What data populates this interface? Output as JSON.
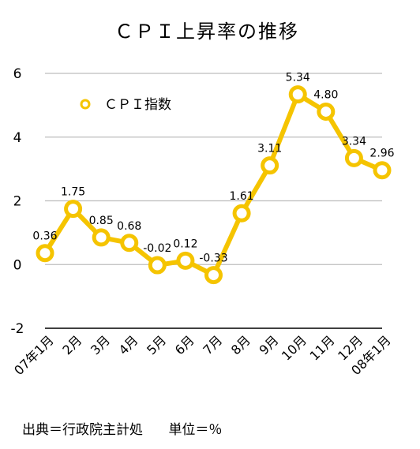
{
  "chart_data": {
    "type": "line",
    "title": "ＣＰＩ上昇率の推移",
    "categories": [
      "07年1月",
      "2月",
      "3月",
      "4月",
      "5月",
      "6月",
      "7月",
      "8月",
      "9月",
      "10月",
      "11月",
      "12月",
      "08年1月"
    ],
    "series": [
      {
        "name": "ＣＰＩ指数",
        "values": [
          0.36,
          1.75,
          0.85,
          0.68,
          -0.02,
          0.12,
          -0.33,
          1.61,
          3.11,
          5.34,
          4.8,
          3.34,
          2.96
        ],
        "labels": [
          "0.36",
          "1.75",
          "0.85",
          "0.68",
          "-0.02",
          "0.12",
          "-0.33",
          "1.61",
          "3.11",
          "5.34",
          "4.80",
          "3.34",
          "2.96"
        ],
        "color": "#F5C400"
      }
    ],
    "yticks": [
      "6",
      "4",
      "2",
      "0",
      "-2"
    ],
    "ytick_values": [
      6,
      4,
      2,
      0,
      -2
    ],
    "ylim": [
      -2,
      6
    ],
    "grid": true,
    "legend_position": "top-left"
  },
  "footer": {
    "source": "出典＝行政院主計処",
    "unit": "単位＝％"
  }
}
